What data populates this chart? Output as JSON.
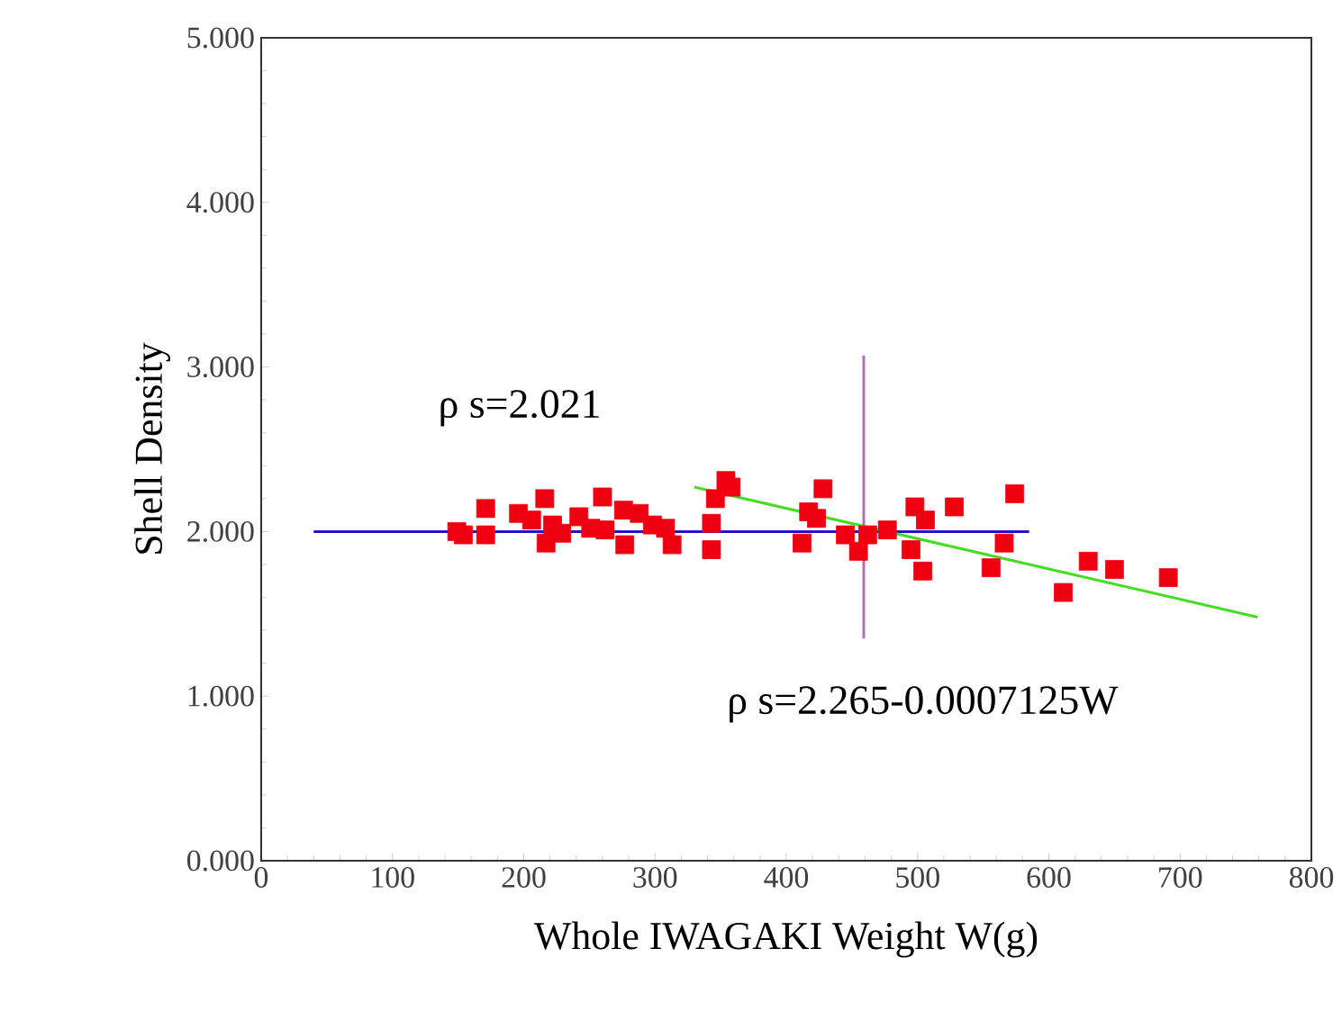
{
  "chart_data": {
    "type": "scatter",
    "xlabel": "Whole IWAGAKI Weight W(g)",
    "ylabel": "Shell Density",
    "annotations": [
      "ρ s=2.021",
      "ρ s=2.265-0.0007125W"
    ],
    "series": [
      {
        "color": "#ee0011",
        "marker": "square",
        "x": [
          149,
          154,
          171,
          171,
          196,
          206,
          216,
          217,
          222,
          229,
          242,
          251,
          260,
          262,
          276,
          277,
          288,
          298,
          308,
          313,
          343,
          343,
          346,
          354,
          358,
          412,
          417,
          423,
          428,
          445,
          455,
          462,
          477,
          495,
          498,
          504,
          506,
          528,
          556,
          566,
          574,
          611,
          630,
          650,
          691
        ],
        "values": [
          2.0,
          1.98,
          2.14,
          1.98,
          2.11,
          2.07,
          2.2,
          1.93,
          2.04,
          1.99,
          2.09,
          2.02,
          2.21,
          2.01,
          2.13,
          1.92,
          2.11,
          2.04,
          2.02,
          1.92,
          2.05,
          1.89,
          2.2,
          2.31,
          2.27,
          1.93,
          2.12,
          2.08,
          2.26,
          1.98,
          1.88,
          1.98,
          2.01,
          1.89,
          2.15,
          1.76,
          2.07,
          2.15,
          1.78,
          1.93,
          2.23,
          1.63,
          1.82,
          1.77,
          1.72
        ]
      },
      {
        "type": "line",
        "color": "#2a10c8",
        "x": [
          40,
          585
        ],
        "values": [
          2.0,
          2.0
        ]
      },
      {
        "type": "line",
        "color": "#44dd22",
        "x": [
          330,
          759
        ],
        "values": [
          2.27,
          1.48
        ]
      },
      {
        "type": "line",
        "color": "#b070b8",
        "x": [
          459,
          459
        ],
        "values": [
          1.35,
          3.07
        ]
      }
    ],
    "xlim": [
      0,
      800
    ],
    "xticks": [
      0,
      100,
      200,
      300,
      400,
      500,
      600,
      700,
      800
    ],
    "ylim": [
      0,
      5
    ],
    "yticks": [
      {
        "value": 0,
        "label": "0.000"
      },
      {
        "value": 1,
        "label": "1.000"
      },
      {
        "value": 2,
        "label": "2.000"
      },
      {
        "value": 3,
        "label": "3.000"
      },
      {
        "value": 4,
        "label": "4.000"
      },
      {
        "value": 5,
        "label": "5.000"
      }
    ],
    "grid": false
  }
}
